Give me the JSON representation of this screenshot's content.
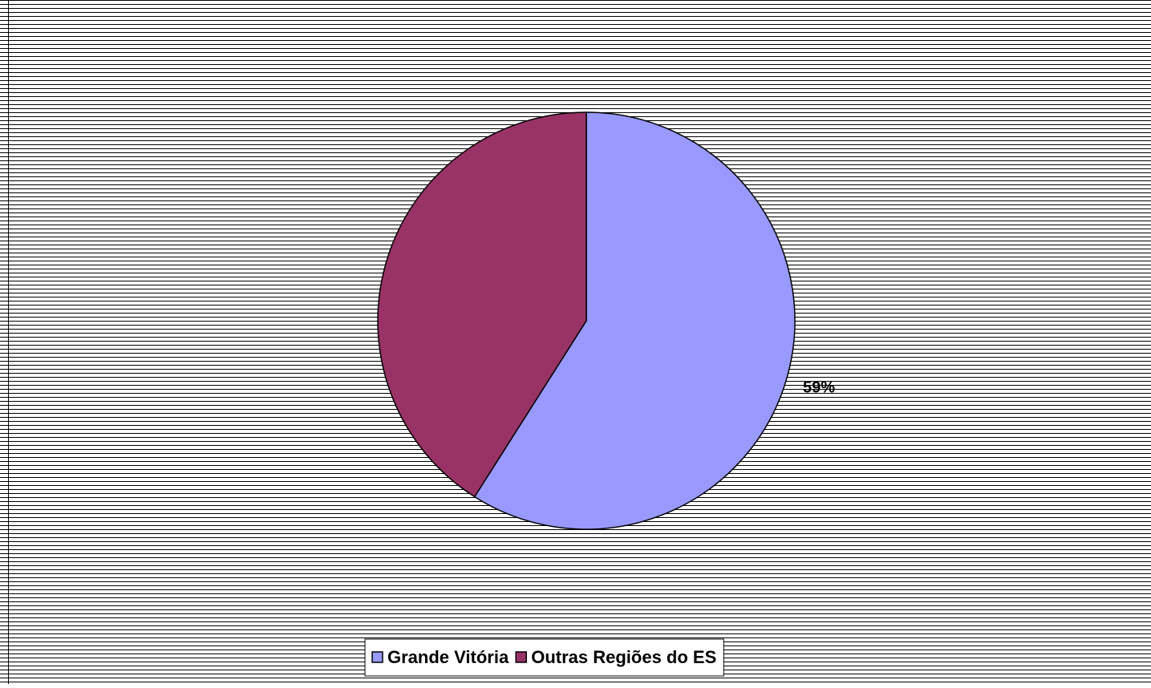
{
  "chart_data": {
    "type": "pie",
    "categories": [
      "Grande Vitória",
      "Outras Regiões do ES"
    ],
    "values": [
      59,
      41
    ],
    "value_labels": [
      "59%",
      null
    ],
    "colors": [
      "#9999ff",
      "#993366"
    ],
    "legend": "bottom"
  }
}
